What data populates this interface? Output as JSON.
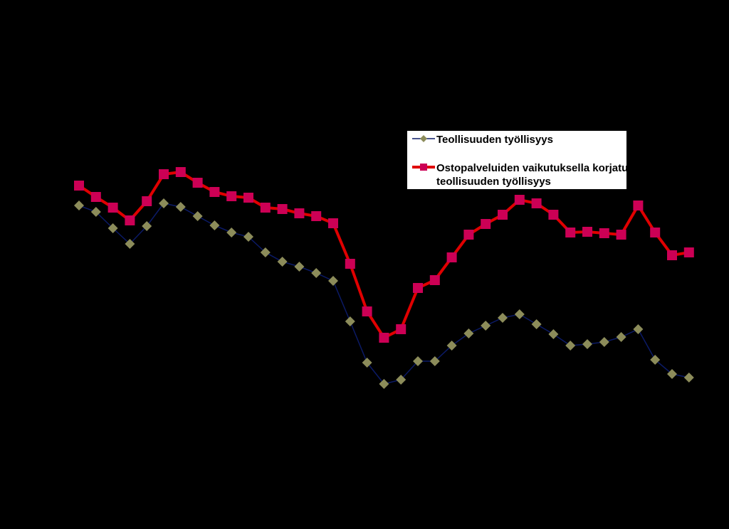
{
  "chart_data": {
    "type": "line",
    "title": "",
    "xlabel": "",
    "ylabel": "",
    "x": [
      1,
      2,
      3,
      4,
      5,
      6,
      7,
      8,
      9,
      10,
      11,
      12,
      13,
      14,
      15,
      16,
      17,
      18,
      19,
      20,
      21,
      22,
      23,
      24,
      25,
      26,
      27,
      28,
      29,
      30,
      31,
      32,
      33,
      34,
      35,
      36,
      37
    ],
    "ylim": [
      0,
      744
    ],
    "grid": false,
    "legend_position": "top-right",
    "background": "#000000",
    "series": [
      {
        "name": "Teollisuuden työllisyys",
        "line_color": "#0b1a66",
        "marker": "diamond",
        "marker_color": "#8c8c5a",
        "values": [
          455,
          446,
          423,
          401,
          426,
          458,
          453,
          440,
          427,
          417,
          411,
          389,
          376,
          369,
          360,
          349,
          292,
          234,
          204,
          210,
          236,
          236,
          258,
          275,
          286,
          297,
          302,
          288,
          274,
          258,
          260,
          263,
          270,
          281,
          238,
          218,
          213
        ]
      },
      {
        "name": "Ostopalveluiden vaikutuksella korjatuttu teollisuuden työllisyys",
        "line_color": "#e00000",
        "marker": "square",
        "marker_color": "#cc0055",
        "values": [
          483,
          467,
          452,
          434,
          461,
          499,
          502,
          487,
          474,
          468,
          466,
          452,
          450,
          444,
          440,
          430,
          373,
          306,
          269,
          281,
          339,
          350,
          382,
          414,
          429,
          442,
          463,
          458,
          442,
          417,
          418,
          416,
          414,
          455,
          417,
          385,
          389
        ]
      }
    ]
  }
}
